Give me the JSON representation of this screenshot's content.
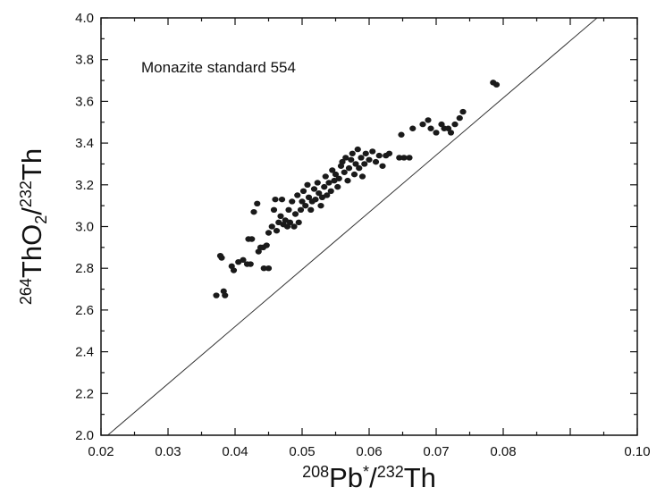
{
  "chart_data": {
    "type": "scatter",
    "title": "",
    "annotation": "Monazite standard 554",
    "xlabel": {
      "sup1": "208",
      "base1": "Pb",
      "sup2": "*",
      "mid": "/",
      "sup3": "232",
      "base2": "Th"
    },
    "ylabel": {
      "sup1": "264",
      "base1": "ThO",
      "sub": "2",
      "mid": "/",
      "sup2": "232",
      "base2": "Th"
    },
    "xlim": [
      0.02,
      0.1
    ],
    "ylim": [
      2.0,
      4.0
    ],
    "xticks": [
      0.02,
      0.03,
      0.04,
      0.05,
      0.06,
      0.07,
      0.08,
      0.1
    ],
    "xtick_labels": [
      "0.02",
      "0.03",
      "0.04",
      "0.05",
      "0.06",
      "0.07",
      "0.08",
      "0.10"
    ],
    "yticks": [
      2.0,
      2.2,
      2.4,
      2.6,
      2.8,
      3.0,
      3.2,
      3.4,
      3.6,
      3.8,
      4.0
    ],
    "ytick_labels": [
      "2.0",
      "2.2",
      "2.4",
      "2.6",
      "2.8",
      "3.0",
      "3.2",
      "3.4",
      "3.6",
      "3.8",
      "4.0"
    ],
    "grid": false,
    "fit_line": {
      "x": [
        0.021,
        0.094
      ],
      "y": [
        2.0,
        4.0
      ]
    },
    "marker_color": "#1a1a1a",
    "line_color": "#333333",
    "points": [
      [
        0.0372,
        2.67
      ],
      [
        0.0383,
        2.69
      ],
      [
        0.0385,
        2.67
      ],
      [
        0.0378,
        2.86
      ],
      [
        0.038,
        2.85
      ],
      [
        0.0395,
        2.81
      ],
      [
        0.0398,
        2.79
      ],
      [
        0.0405,
        2.83
      ],
      [
        0.0412,
        2.84
      ],
      [
        0.0418,
        2.82
      ],
      [
        0.0423,
        2.82
      ],
      [
        0.042,
        2.94
      ],
      [
        0.0425,
        2.94
      ],
      [
        0.0428,
        3.07
      ],
      [
        0.0433,
        3.11
      ],
      [
        0.0435,
        2.88
      ],
      [
        0.0438,
        2.9
      ],
      [
        0.0442,
        2.9
      ],
      [
        0.0447,
        2.91
      ],
      [
        0.045,
        2.97
      ],
      [
        0.0455,
        3.0
      ],
      [
        0.0458,
        3.08
      ],
      [
        0.046,
        3.13
      ],
      [
        0.0443,
        2.8
      ],
      [
        0.045,
        2.8
      ],
      [
        0.0462,
        2.98
      ],
      [
        0.0465,
        3.02
      ],
      [
        0.0468,
        3.05
      ],
      [
        0.047,
        3.13
      ],
      [
        0.0472,
        3.01
      ],
      [
        0.0475,
        3.03
      ],
      [
        0.0478,
        3.0
      ],
      [
        0.048,
        3.08
      ],
      [
        0.0482,
        3.02
      ],
      [
        0.0485,
        3.12
      ],
      [
        0.0488,
        3.0
      ],
      [
        0.049,
        3.06
      ],
      [
        0.0493,
        3.15
      ],
      [
        0.0495,
        3.02
      ],
      [
        0.0498,
        3.08
      ],
      [
        0.05,
        3.12
      ],
      [
        0.0502,
        3.17
      ],
      [
        0.0505,
        3.1
      ],
      [
        0.0508,
        3.2
      ],
      [
        0.051,
        3.14
      ],
      [
        0.0513,
        3.08
      ],
      [
        0.0515,
        3.12
      ],
      [
        0.0518,
        3.18
      ],
      [
        0.052,
        3.13
      ],
      [
        0.0523,
        3.21
      ],
      [
        0.0525,
        3.16
      ],
      [
        0.0528,
        3.1
      ],
      [
        0.053,
        3.14
      ],
      [
        0.0533,
        3.19
      ],
      [
        0.0535,
        3.24
      ],
      [
        0.0537,
        3.15
      ],
      [
        0.054,
        3.21
      ],
      [
        0.0543,
        3.17
      ],
      [
        0.0545,
        3.27
      ],
      [
        0.0548,
        3.22
      ],
      [
        0.055,
        3.25
      ],
      [
        0.0553,
        3.19
      ],
      [
        0.0555,
        3.23
      ],
      [
        0.0558,
        3.29
      ],
      [
        0.056,
        3.31
      ],
      [
        0.0563,
        3.26
      ],
      [
        0.0565,
        3.33
      ],
      [
        0.0568,
        3.22
      ],
      [
        0.057,
        3.28
      ],
      [
        0.0573,
        3.32
      ],
      [
        0.0575,
        3.35
      ],
      [
        0.0578,
        3.25
      ],
      [
        0.058,
        3.3
      ],
      [
        0.0583,
        3.37
      ],
      [
        0.0585,
        3.28
      ],
      [
        0.0588,
        3.33
      ],
      [
        0.059,
        3.24
      ],
      [
        0.0593,
        3.3
      ],
      [
        0.0595,
        3.35
      ],
      [
        0.06,
        3.32
      ],
      [
        0.0605,
        3.36
      ],
      [
        0.061,
        3.31
      ],
      [
        0.0615,
        3.34
      ],
      [
        0.062,
        3.29
      ],
      [
        0.0625,
        3.34
      ],
      [
        0.063,
        3.35
      ],
      [
        0.0645,
        3.33
      ],
      [
        0.0652,
        3.33
      ],
      [
        0.066,
        3.33
      ],
      [
        0.0648,
        3.44
      ],
      [
        0.0665,
        3.47
      ],
      [
        0.068,
        3.49
      ],
      [
        0.0688,
        3.51
      ],
      [
        0.0692,
        3.47
      ],
      [
        0.07,
        3.45
      ],
      [
        0.0708,
        3.49
      ],
      [
        0.0712,
        3.47
      ],
      [
        0.0718,
        3.47
      ],
      [
        0.0722,
        3.45
      ],
      [
        0.0728,
        3.49
      ],
      [
        0.0735,
        3.52
      ],
      [
        0.074,
        3.55
      ],
      [
        0.0785,
        3.69
      ],
      [
        0.079,
        3.68
      ]
    ]
  }
}
